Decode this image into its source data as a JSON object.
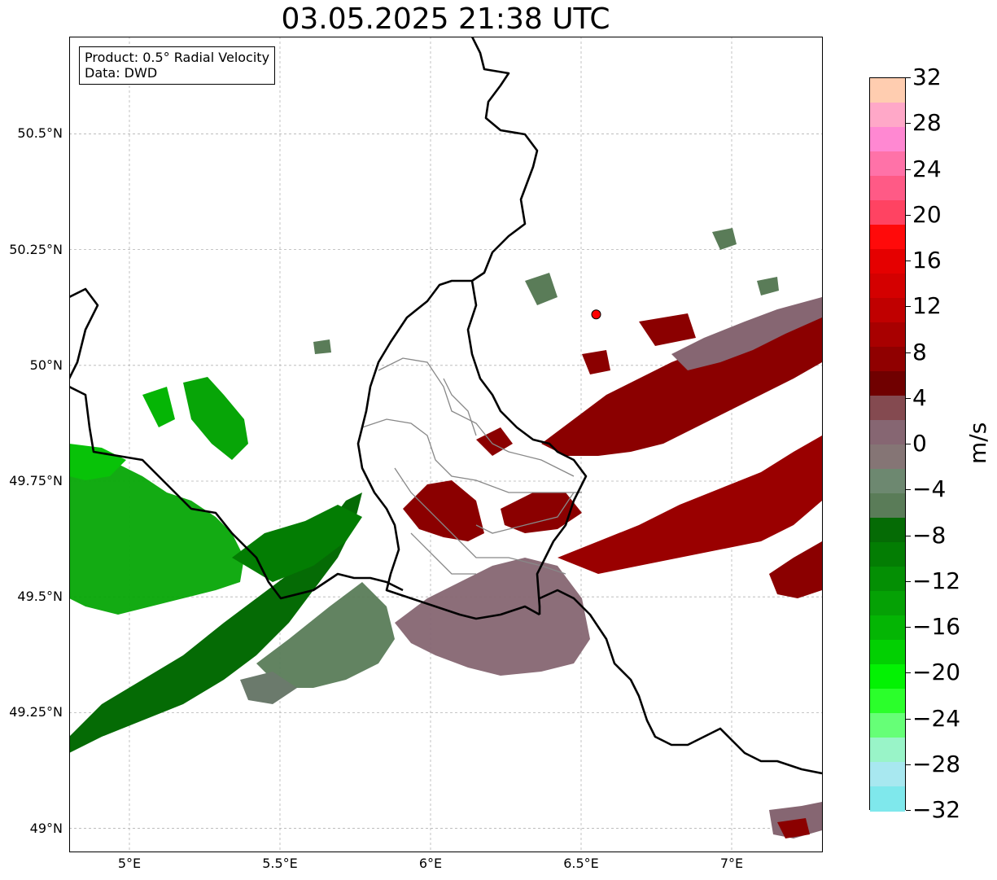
{
  "title": "03.05.2025 21:38 UTC",
  "info_box": {
    "product": "Product: 0.5° Radial Velocity",
    "source": "Data: DWD"
  },
  "map": {
    "lon_range": [
      4.8,
      7.3
    ],
    "lat_range": [
      48.95,
      50.71
    ],
    "lon_ticks": [
      {
        "value": 5.0,
        "label": "5°E"
      },
      {
        "value": 5.5,
        "label": "5.5°E"
      },
      {
        "value": 6.0,
        "label": "6°E"
      },
      {
        "value": 6.5,
        "label": "6.5°E"
      },
      {
        "value": 7.0,
        "label": "7°E"
      }
    ],
    "lat_ticks": [
      {
        "value": 50.5,
        "label": "50.5°N"
      },
      {
        "value": 50.25,
        "label": "50.25°N"
      },
      {
        "value": 50.0,
        "label": "50°N"
      },
      {
        "value": 49.75,
        "label": "49.75°N"
      },
      {
        "value": 49.5,
        "label": "49.5°N"
      },
      {
        "value": 49.25,
        "label": "49.25°N"
      },
      {
        "value": 49.0,
        "label": "49°N"
      }
    ],
    "grid": true,
    "radar_site": {
      "lon": 6.55,
      "lat": 50.11,
      "color": "#ff0000"
    }
  },
  "colorbar": {
    "unit": "m/s",
    "min": -32,
    "max": 32,
    "ticks": [
      "32",
      "28",
      "24",
      "20",
      "16",
      "12",
      "8",
      "4",
      "0",
      "−4",
      "−8",
      "−12",
      "−16",
      "−20",
      "−24",
      "−28",
      "−32"
    ],
    "tick_values": [
      32,
      28,
      24,
      20,
      16,
      12,
      8,
      4,
      0,
      -4,
      -8,
      -12,
      -16,
      -20,
      -24,
      -28,
      -32
    ],
    "colors_top_to_bottom": [
      "#ffcdb0",
      "#ffa8c8",
      "#ff88d2",
      "#ff72a8",
      "#ff5a86",
      "#ff4362",
      "#ff0a0a",
      "#e50000",
      "#d40000",
      "#c00000",
      "#a80000",
      "#900000",
      "#700000",
      "#844a50",
      "#866672",
      "#857575",
      "#6d8870",
      "#5a7c58",
      "#056b05",
      "#037d03",
      "#048f04",
      "#05a105",
      "#04b504",
      "#02d002",
      "#03f203",
      "#2bff2b",
      "#66ff77",
      "#99f4c8",
      "#a8e8f0",
      "#7fe8ec"
    ]
  },
  "legend_colors": {
    "inbound_strong": "#00a000",
    "inbound_dark": "#056b05",
    "near_zero_green": "#5a7c58",
    "near_zero_gray": "#866672",
    "outbound_dark": "#8b0000",
    "outbound": "#a80000"
  }
}
